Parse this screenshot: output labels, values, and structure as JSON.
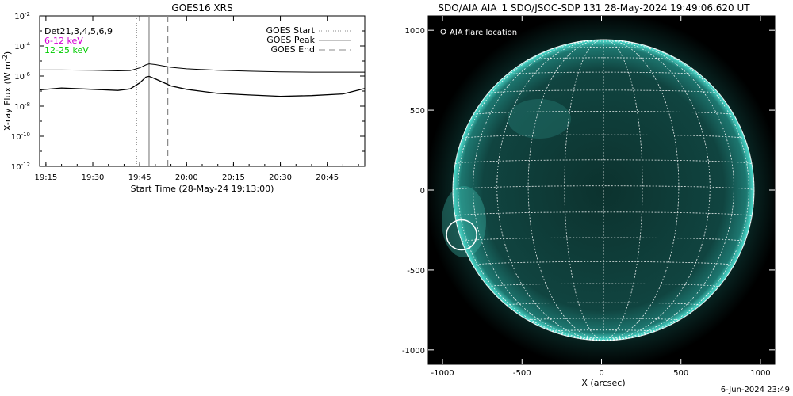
{
  "goes": {
    "title": "GOES16 XRS",
    "ylabel": "X-ray Flux (W m",
    "ylabel_sup": "-2",
    "ylabel_end": ")",
    "xlabel": "Start Time (28-May-24 19:13:00)",
    "y_ticks": [
      {
        "base": "10",
        "exp": "-2"
      },
      {
        "base": "10",
        "exp": "-4"
      },
      {
        "base": "10",
        "exp": "-6"
      },
      {
        "base": "10",
        "exp": "-8"
      },
      {
        "base": "10",
        "exp": "-10"
      },
      {
        "base": "10",
        "exp": "-12"
      }
    ],
    "x_ticks": [
      "19:15",
      "19:30",
      "19:45",
      "20:00",
      "20:15",
      "20:30",
      "20:45"
    ],
    "det_label": "Det21,3,4,5,6,9",
    "band_labels": [
      "6-12 keV",
      "12-25 keV"
    ],
    "legend": [
      "GOES Start",
      "GOES Peak",
      "GOES End"
    ],
    "colors": {
      "band1": "#d400d4",
      "band2": "#00cc00"
    }
  },
  "aia": {
    "title": "SDO/AIA AIA_1 SDO/JSOC-SDP 131 28-May-2024 19:49:06.620 UT",
    "legend": "AIA flare location",
    "xlabel": "X (arcsec)",
    "x_ticks": [
      "-1000",
      "-500",
      "0",
      "500",
      "1000"
    ],
    "y_ticks": [
      "1000",
      "500",
      "0",
      "-500",
      "-1000"
    ],
    "colors": {
      "disk": "#0f3f3a",
      "limb": "#3fd6c6"
    }
  },
  "footer": "6-Jun-2024 23:49",
  "chart_data": [
    {
      "type": "line",
      "title": "GOES16 XRS",
      "xlabel": "Start Time (28-May-24 19:13:00)",
      "ylabel": "X-ray Flux (W m-2)",
      "y_scale": "log",
      "ylim": [
        1e-12,
        0.01
      ],
      "xlim": [
        "19:13",
        "20:57"
      ],
      "x": [
        "19:13",
        "19:20",
        "19:30",
        "19:38",
        "19:42",
        "19:45",
        "19:47",
        "19:48",
        "19:50",
        "19:55",
        "20:00",
        "20:10",
        "20:20",
        "20:30",
        "20:40",
        "20:50",
        "20:57"
      ],
      "series": [
        {
          "name": "6-12 keV",
          "values": [
            2.5e-06,
            2.5e-06,
            2.4e-06,
            2.2e-06,
            2.3e-06,
            3.5e-06,
            5.5e-06,
            6.5e-06,
            5.8e-06,
            3.8e-06,
            3e-06,
            2.4e-06,
            2.1e-06,
            1.9e-06,
            1.8e-06,
            1.8e-06,
            1.8e-06
          ]
        },
        {
          "name": "12-25 keV",
          "values": [
            1.2e-07,
            1.6e-07,
            1.3e-07,
            1.1e-07,
            1.4e-07,
            3.5e-07,
            8.5e-07,
            9.5e-07,
            6.5e-07,
            2.2e-07,
            1.3e-07,
            7e-08,
            5.5e-08,
            4.5e-08,
            5e-08,
            6.5e-08,
            1.5e-07
          ]
        }
      ],
      "markers": {
        "GOES Start": "19:44",
        "GOES Peak": "19:48",
        "GOES End": "19:54"
      },
      "x_ticks": [
        "19:15",
        "19:30",
        "19:45",
        "20:00",
        "20:15",
        "20:30",
        "20:45"
      ],
      "legend": "top-right"
    },
    {
      "type": "scatter",
      "title": "SDO/AIA AIA_1 SDO/JSOC-SDP 131 28-May-2024 19:49:06.620 UT",
      "xlabel": "X (arcsec)",
      "xlim": [
        -1090,
        1090
      ],
      "ylim": [
        -1090,
        1090
      ],
      "series": [
        {
          "name": "AIA flare location",
          "x": [
            -880
          ],
          "y": [
            -280
          ]
        }
      ],
      "grid": true
    }
  ]
}
